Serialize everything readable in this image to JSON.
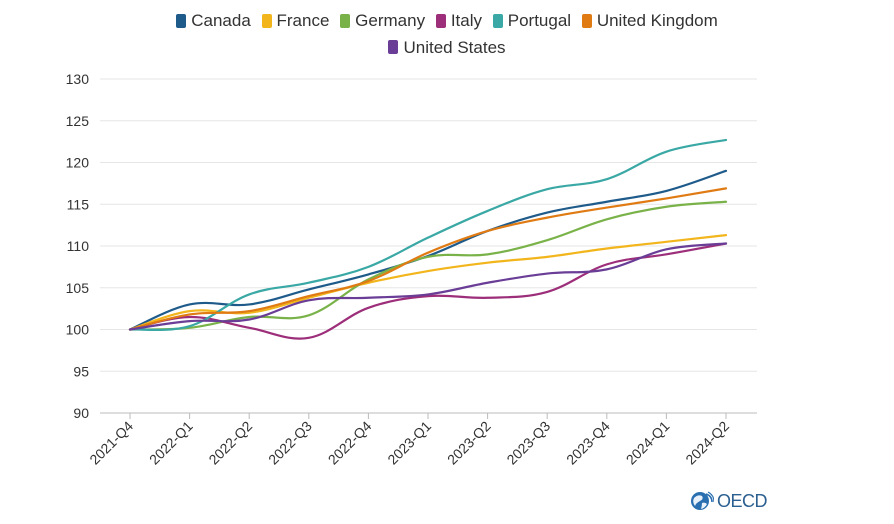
{
  "chart_data": {
    "type": "line",
    "title": "",
    "xlabel": "",
    "ylabel": "",
    "categories": [
      "2021-Q4",
      "2022-Q1",
      "2022-Q2",
      "2022-Q3",
      "2022-Q4",
      "2023-Q1",
      "2023-Q2",
      "2023-Q3",
      "2023-Q4",
      "2024-Q1",
      "2024-Q2"
    ],
    "yticks": [
      90,
      95,
      100,
      105,
      110,
      115,
      120,
      125,
      130
    ],
    "ylim": [
      90,
      130
    ],
    "grid": true,
    "legend_position": "top",
    "series": [
      {
        "name": "Canada",
        "color": "#1f5b8a",
        "values": [
          100,
          103.0,
          103.0,
          104.8,
          106.6,
          108.8,
          111.8,
          114.0,
          115.3,
          116.6,
          119.0
        ]
      },
      {
        "name": "France",
        "color": "#f2b51c",
        "values": [
          100,
          102.2,
          102.0,
          103.8,
          105.6,
          107.0,
          108.0,
          108.7,
          109.7,
          110.5,
          111.3
        ]
      },
      {
        "name": "Germany",
        "color": "#7ab24a",
        "values": [
          100,
          100.2,
          101.5,
          101.7,
          106.0,
          108.7,
          109.0,
          110.7,
          113.2,
          114.7,
          115.3
        ]
      },
      {
        "name": "Italy",
        "color": "#9c2e7a",
        "values": [
          100,
          101.5,
          100.2,
          99.0,
          102.6,
          104.0,
          103.8,
          104.5,
          107.8,
          109.0,
          110.3
        ]
      },
      {
        "name": "Portugal",
        "color": "#3aa8a5",
        "values": [
          100,
          100.4,
          104.2,
          105.6,
          107.5,
          111.0,
          114.2,
          116.8,
          118.0,
          121.3,
          122.7
        ]
      },
      {
        "name": "United Kingdom",
        "color": "#e07b14",
        "values": [
          100,
          101.8,
          102.2,
          104.0,
          105.8,
          109.2,
          111.8,
          113.4,
          114.6,
          115.7,
          116.9
        ]
      },
      {
        "name": "United States",
        "color": "#6a3d96",
        "values": [
          100,
          101.0,
          101.2,
          103.5,
          103.8,
          104.2,
          105.6,
          106.7,
          107.2,
          109.6,
          110.3
        ]
      }
    ]
  },
  "logo": {
    "text": "OECD"
  }
}
